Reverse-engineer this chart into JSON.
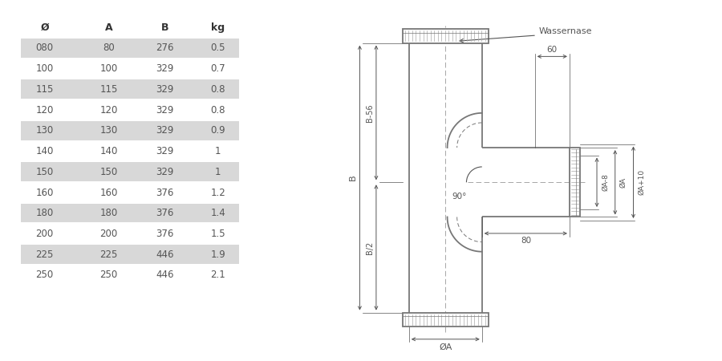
{
  "table_headers": [
    "Ø",
    "A",
    "B",
    "kg"
  ],
  "table_rows": [
    [
      "080",
      "80",
      "276",
      "0.5"
    ],
    [
      "100",
      "100",
      "329",
      "0.7"
    ],
    [
      "115",
      "115",
      "329",
      "0.8"
    ],
    [
      "120",
      "120",
      "329",
      "0.8"
    ],
    [
      "130",
      "130",
      "329",
      "0.9"
    ],
    [
      "140",
      "140",
      "329",
      "1"
    ],
    [
      "150",
      "150",
      "329",
      "1"
    ],
    [
      "160",
      "160",
      "376",
      "1.2"
    ],
    [
      "180",
      "180",
      "376",
      "1.4"
    ],
    [
      "200",
      "200",
      "376",
      "1.5"
    ],
    [
      "225",
      "225",
      "446",
      "1.9"
    ],
    [
      "250",
      "250",
      "446",
      "2.1"
    ]
  ],
  "shaded_rows": [
    0,
    2,
    4,
    6,
    8,
    10
  ],
  "bg_color": "#ffffff",
  "dim_color": "#555555",
  "line_color": "#777777",
  "label_wassernase": "Wassernase",
  "dim_60": "60",
  "dim_80": "80",
  "dim_B": "B",
  "dim_B56": "B-56",
  "dim_B2": "B/2",
  "dim_phiA": "ØA",
  "dim_phiA8": "ØA-8",
  "dim_phiA_mid": "ØA",
  "dim_phiA10": "ØA+10",
  "dim_90": "90°"
}
